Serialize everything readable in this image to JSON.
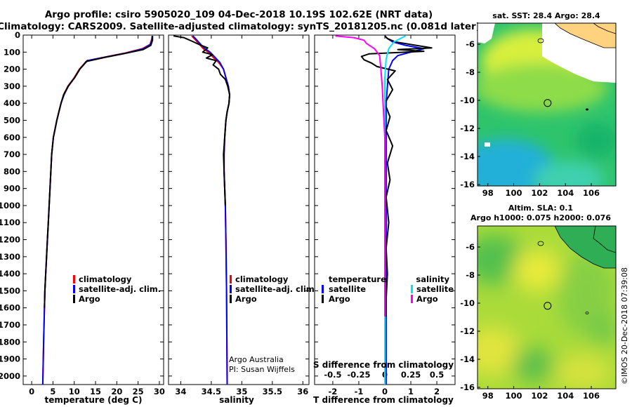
{
  "figure": {
    "title_line1": "Argo profile: csiro 5905020_109 04-Dec-2018 10.19S 102.62E (NRT data)",
    "title_line2": "Climatology: CARS2009. Satellite-adjusted climatology: synTS_20181205.nc (0.081d later)",
    "credit": "©IMOS 20-Dec-2018 07:39:08",
    "institution_line1": "Argo Australia",
    "institution_line2": "PI: Susan Wijffels"
  },
  "colors": {
    "climatology": "#ff0000",
    "satellite": "#0000ff",
    "argo": "#000000",
    "salinity_satellite": "#00e5ff",
    "salinity_argo": "#ff00ff"
  },
  "chart_data": [
    {
      "type": "line",
      "id": "temperature",
      "xlabel": "temperature (deg C)",
      "ylabel": "",
      "xlim": [
        -2,
        31
      ],
      "ylim": [
        2050,
        0
      ],
      "xticks": [
        0,
        5,
        10,
        15,
        20,
        25,
        30
      ],
      "yticks": [
        0,
        100,
        200,
        300,
        400,
        500,
        600,
        700,
        800,
        900,
        1000,
        1100,
        1200,
        1300,
        1400,
        1500,
        1600,
        1700,
        1800,
        1900,
        2000
      ],
      "legend": [
        "climatology",
        "satellite-adj. clim.",
        "Argo"
      ],
      "series": [
        {
          "name": "climatology",
          "color": "#ff0000",
          "x": [
            28.3,
            28.2,
            27.8,
            26.0,
            22.0,
            18.0,
            13.0,
            11.2,
            10.0,
            8.5,
            7.5,
            6.9,
            6.4,
            5.9,
            5.5,
            5.1,
            4.7,
            4.5,
            4.3,
            4.1,
            3.9,
            3.7,
            3.5,
            3.3,
            3.1,
            3.0,
            2.8,
            2.6
          ],
          "y": [
            5,
            25,
            55,
            80,
            105,
            125,
            150,
            200,
            250,
            300,
            350,
            400,
            450,
            500,
            550,
            600,
            700,
            800,
            900,
            1000,
            1100,
            1200,
            1300,
            1400,
            1500,
            1600,
            1800,
            2050
          ]
        },
        {
          "name": "satellite-adj. clim.",
          "color": "#0000ff",
          "x": [
            28.4,
            28.3,
            27.9,
            26.3,
            22.3,
            18.2,
            13.1,
            11.3,
            10.1,
            8.6,
            7.6,
            6.9,
            6.4,
            5.9,
            5.5,
            5.1,
            4.7,
            4.5,
            4.3,
            4.1,
            3.9,
            3.7,
            3.5,
            3.3,
            3.1,
            3.0,
            2.8,
            2.6
          ],
          "y": [
            5,
            25,
            55,
            80,
            105,
            125,
            150,
            200,
            250,
            300,
            350,
            400,
            450,
            500,
            550,
            600,
            700,
            800,
            900,
            1000,
            1100,
            1200,
            1300,
            1400,
            1500,
            1600,
            1800,
            2050
          ]
        },
        {
          "name": "Argo",
          "color": "#000000",
          "x": [
            28.4,
            28.4,
            28.0,
            26.2,
            21.5,
            17.3,
            12.8,
            11.3,
            10.1,
            8.6,
            7.5,
            6.9,
            6.4,
            5.9,
            5.5,
            5.1,
            4.7,
            4.5,
            4.3,
            4.1,
            3.9,
            3.7,
            3.5,
            3.3,
            3.1,
            3.0
          ],
          "y": [
            5,
            30,
            60,
            85,
            110,
            130,
            155,
            200,
            250,
            300,
            350,
            400,
            450,
            500,
            550,
            600,
            700,
            800,
            900,
            1000,
            1100,
            1200,
            1300,
            1400,
            1500,
            1600
          ]
        }
      ]
    },
    {
      "type": "line",
      "id": "salinity",
      "xlabel": "salinity",
      "ylabel": "",
      "xlim": [
        33.8,
        36.1
      ],
      "ylim": [
        2050,
        0
      ],
      "xticks": [
        34,
        34.5,
        35,
        35.5,
        36
      ],
      "xticklabels": [
        "34",
        "34.5",
        "35",
        "35.5",
        "36"
      ],
      "legend": [
        "climatology",
        "satellite-adj. clim.",
        "Argo"
      ],
      "series": [
        {
          "name": "climatology",
          "color": "#ff0000",
          "x": [
            34.18,
            34.22,
            34.27,
            34.32,
            34.37,
            34.45,
            34.53,
            34.62,
            34.7,
            34.74,
            34.78,
            34.8,
            34.79,
            34.76,
            34.74,
            34.72,
            34.71,
            34.71,
            34.72,
            34.73,
            34.74,
            34.75,
            34.76
          ],
          "y": [
            5,
            20,
            40,
            60,
            80,
            100,
            130,
            160,
            200,
            250,
            300,
            350,
            400,
            450,
            500,
            600,
            700,
            800,
            900,
            1000,
            1200,
            1500,
            2050
          ]
        },
        {
          "name": "satellite-adj. clim.",
          "color": "#0000ff",
          "x": [
            34.2,
            34.24,
            34.29,
            34.34,
            34.4,
            34.48,
            34.56,
            34.64,
            34.7,
            34.74,
            34.78,
            34.8,
            34.79,
            34.76,
            34.74,
            34.72,
            34.71,
            34.71,
            34.72,
            34.73,
            34.74,
            34.75,
            34.76
          ],
          "y": [
            5,
            20,
            40,
            60,
            80,
            100,
            130,
            160,
            200,
            250,
            300,
            350,
            400,
            450,
            500,
            600,
            700,
            800,
            900,
            1000,
            1200,
            1500,
            2050
          ]
        },
        {
          "name": "Argo",
          "color": "#000000",
          "x": [
            33.88,
            34.05,
            34.18,
            34.3,
            34.44,
            34.36,
            34.52,
            34.42,
            34.58,
            34.53,
            34.62,
            34.65,
            34.73,
            34.77,
            34.8,
            34.79,
            34.76,
            34.74,
            34.72,
            34.7,
            34.71,
            34.72,
            34.73
          ],
          "y": [
            5,
            15,
            35,
            55,
            75,
            100,
            115,
            135,
            150,
            175,
            200,
            230,
            260,
            300,
            350,
            400,
            450,
            500,
            600,
            700,
            800,
            900,
            1000
          ]
        }
      ]
    },
    {
      "type": "line",
      "id": "difference",
      "xlabel": "T difference from climatology",
      "secondary_xlabel": "S difference from climatology",
      "xlim": [
        -2.7,
        2.7
      ],
      "ylim": [
        2050,
        0
      ],
      "xticks": [
        -2,
        -1,
        0,
        1,
        2
      ],
      "xticklabels": [
        "-2",
        "-1",
        "0",
        "1",
        "2"
      ],
      "secondary_xticklabels": [
        "-0.5",
        "-0.25",
        "0",
        "0.25",
        "0.5"
      ],
      "legend_temperature_header": "temperature",
      "legend_salinity_header": "salinity",
      "legend_temperature": [
        "satellite",
        "Argo"
      ],
      "legend_salinity": [
        "satellite",
        "Argo"
      ],
      "series": [
        {
          "name": "temperature satellite",
          "color": "#0000ff",
          "x": [
            0.0,
            0.1,
            0.3,
            0.8,
            1.5,
            1.0,
            0.5,
            0.3,
            0.15,
            0.1,
            0.05,
            0.05,
            0.05,
            0.05,
            0.05,
            0.05,
            0.05
          ],
          "y": [
            5,
            20,
            40,
            60,
            80,
            100,
            120,
            150,
            200,
            300,
            400,
            600,
            800,
            1000,
            1400,
            1700,
            2050
          ]
        },
        {
          "name": "temperature Argo",
          "color": "#000000",
          "x": [
            0.0,
            0.1,
            0.4,
            1.2,
            1.8,
            0.5,
            1.5,
            -0.6,
            -0.9,
            -0.8,
            -0.5,
            -0.3,
            0.4,
            0.1,
            0.3,
            0.0,
            0.2,
            0.05,
            0.3,
            0.1,
            0.2,
            0.05,
            0.15,
            0.05,
            0.1,
            0.05,
            0.05
          ],
          "y": [
            5,
            20,
            40,
            60,
            75,
            85,
            95,
            110,
            125,
            145,
            165,
            185,
            210,
            260,
            320,
            400,
            480,
            560,
            650,
            750,
            850,
            950,
            1100,
            1250,
            1400,
            1550,
            1650
          ]
        },
        {
          "name": "salinity satellite",
          "color": "#00e5ff",
          "x": [
            0.8,
            0.6,
            0.35,
            0.15,
            0.05,
            0.0,
            0.0,
            0.0,
            0.0,
            0.0,
            0.0,
            0.0
          ],
          "y": [
            5,
            20,
            40,
            80,
            140,
            250,
            400,
            600,
            900,
            1300,
            1700,
            2050
          ]
        },
        {
          "name": "salinity Argo",
          "color": "#ff00ff",
          "x": [
            -1.9,
            -1.2,
            -0.8,
            -0.7,
            -0.4,
            -0.2,
            -0.15,
            -0.1,
            -0.05,
            0.0,
            0.0,
            0.0,
            0.0
          ],
          "y": [
            5,
            15,
            30,
            50,
            80,
            120,
            200,
            300,
            450,
            600,
            800,
            1000,
            1650
          ]
        }
      ]
    }
  ],
  "map_top": {
    "title": "sat. SST: 28.4 Argo: 28.4",
    "xticks": [
      "98",
      "100",
      "102",
      "104",
      "106"
    ],
    "yticks": [
      "-6",
      "-8",
      "-10",
      "-12",
      "-14",
      "-16"
    ],
    "float_lon": 102.62,
    "float_lat": -10.19
  },
  "map_bottom": {
    "title_line1": "Altim. SLA: 0.1",
    "title_line2": "Argo h1000: 0.075 h2000: 0.076",
    "xticks": [
      "98",
      "100",
      "102",
      "104",
      "106"
    ],
    "yticks": [
      "-6",
      "-8",
      "-10",
      "-12",
      "-14",
      "-16"
    ],
    "float_lon": 102.62,
    "float_lat": -10.19
  }
}
